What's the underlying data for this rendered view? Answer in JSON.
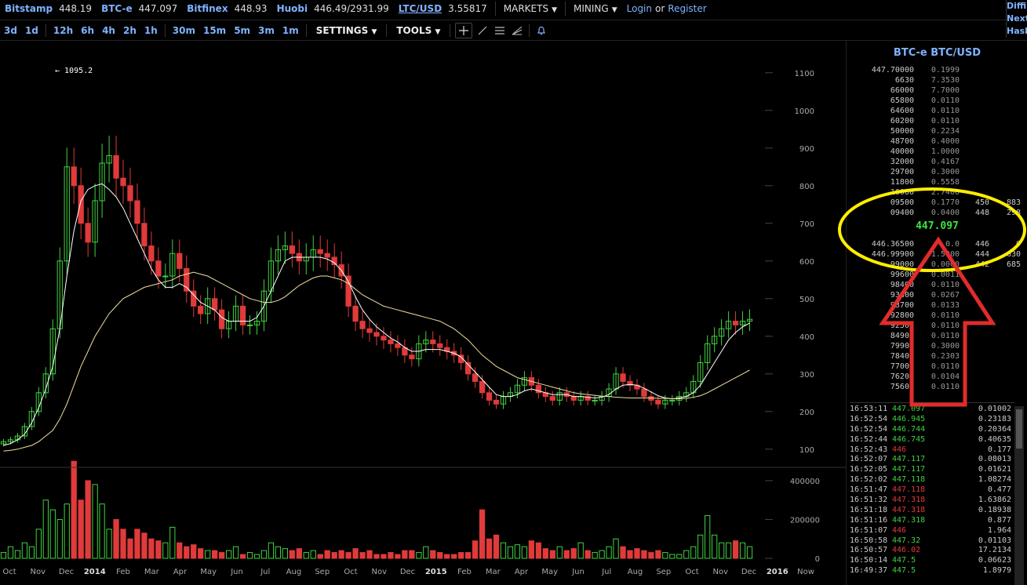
{
  "topbar": {
    "markets": [
      {
        "name": "Bitstamp",
        "price": "448.19"
      },
      {
        "name": "BTC-e",
        "price": "447.097"
      },
      {
        "name": "Bitfinex",
        "price": "448.93"
      },
      {
        "name": "Huobi",
        "price": "446.49/2931.99"
      }
    ],
    "ltc": {
      "name": "LTC/USD",
      "price": "3.55817"
    },
    "menus": [
      {
        "label": "MARKETS"
      },
      {
        "label": "MINING"
      }
    ],
    "login": "Login",
    "or": "or",
    "register": "Register",
    "corner": [
      "Diffi",
      "Next",
      "Hash"
    ]
  },
  "toolbar": {
    "periods": [
      "3d",
      "1d",
      "12h",
      "6h",
      "4h",
      "2h",
      "1h",
      "30m",
      "15m",
      "5m",
      "3m",
      "1m"
    ],
    "settings": "SETTINGS",
    "tools": "TOOLS",
    "icons": [
      "crosshair-icon",
      "line-draw-icon",
      "horizontal-lines-icon",
      "fan-icon",
      "bell-icon"
    ]
  },
  "chart_data": {
    "type": "candlestick",
    "title": "",
    "y_ticks": [
      "1100",
      "1000",
      "900",
      "800",
      "700",
      "600",
      "500",
      "400",
      "300",
      "200",
      "100"
    ],
    "ylim": [
      60,
      1110
    ],
    "volume_ticks": [
      "400000",
      "200000",
      "0"
    ],
    "x_ticks": [
      "Oct",
      "Nov",
      "Dec",
      "2014",
      "Feb",
      "Mar",
      "Apr",
      "May",
      "Jun",
      "Jul",
      "Aug",
      "Sep",
      "Oct",
      "Nov",
      "Dec",
      "2015",
      "Feb",
      "Mar",
      "Apr",
      "May",
      "Jun",
      "Jul",
      "Aug",
      "Sep",
      "Oct",
      "Nov",
      "Dec",
      "2016",
      "Now"
    ],
    "annotation": "← 1095.2",
    "close_series": [
      120,
      125,
      135,
      160,
      200,
      250,
      300,
      420,
      600,
      850,
      800,
      700,
      650,
      760,
      860,
      880,
      820,
      800,
      760,
      700,
      640,
      600,
      560,
      560,
      620,
      580,
      520,
      480,
      460,
      500,
      470,
      420,
      440,
      480,
      430,
      430,
      440,
      520,
      600,
      630,
      640,
      620,
      600,
      610,
      630,
      620,
      610,
      590,
      560,
      480,
      440,
      420,
      410,
      400,
      390,
      380,
      370,
      350,
      340,
      380,
      390,
      380,
      370,
      360,
      350,
      330,
      300,
      280,
      250,
      230,
      220,
      240,
      250,
      270,
      290,
      270,
      250,
      240,
      230,
      250,
      240,
      230,
      240,
      230,
      230,
      240,
      260,
      300,
      280,
      270,
      260,
      240,
      230,
      220,
      230,
      230,
      240,
      250,
      280,
      330,
      380,
      400,
      420,
      440,
      430,
      440,
      445
    ],
    "ma_fast": [
      110,
      115,
      125,
      140,
      170,
      210,
      260,
      320,
      420,
      560,
      680,
      760,
      790,
      800,
      805,
      790,
      770,
      740,
      700,
      660,
      620,
      580,
      550,
      530,
      530,
      540,
      530,
      510,
      490,
      480,
      470,
      450,
      440,
      440,
      440,
      440,
      450,
      480,
      520,
      560,
      600,
      610,
      610,
      610,
      610,
      610,
      605,
      595,
      575,
      545,
      505,
      470,
      445,
      425,
      410,
      395,
      385,
      370,
      360,
      360,
      365,
      365,
      365,
      360,
      355,
      345,
      325,
      305,
      285,
      265,
      245,
      240,
      240,
      245,
      255,
      260,
      255,
      250,
      245,
      245,
      245,
      240,
      240,
      238,
      236,
      238,
      245,
      260,
      270,
      272,
      270,
      262,
      252,
      242,
      236,
      234,
      236,
      240,
      250,
      270,
      300,
      330,
      360,
      390,
      410,
      425,
      435
    ],
    "ma_slow": [
      95,
      97,
      100,
      105,
      110,
      120,
      135,
      150,
      180,
      220,
      270,
      320,
      360,
      400,
      430,
      460,
      480,
      500,
      510,
      520,
      530,
      535,
      540,
      545,
      550,
      560,
      565,
      570,
      565,
      560,
      550,
      540,
      530,
      520,
      510,
      500,
      495,
      490,
      490,
      495,
      505,
      520,
      535,
      545,
      555,
      560,
      560,
      555,
      550,
      540,
      525,
      510,
      500,
      490,
      480,
      475,
      470,
      465,
      460,
      455,
      450,
      445,
      440,
      430,
      420,
      405,
      390,
      370,
      350,
      335,
      320,
      310,
      300,
      290,
      285,
      280,
      275,
      270,
      265,
      260,
      255,
      250,
      247,
      245,
      243,
      241,
      240,
      238,
      237,
      236,
      236,
      236,
      236,
      235,
      235,
      234,
      234,
      235,
      238,
      242,
      250,
      260,
      270,
      280,
      290,
      300,
      310
    ],
    "volume": [
      30000,
      60000,
      40000,
      80000,
      60000,
      150000,
      300000,
      250000,
      200000,
      280000,
      500000,
      300000,
      400000,
      380000,
      280000,
      150000,
      200000,
      150000,
      100000,
      150000,
      130000,
      100000,
      90000,
      80000,
      160000,
      80000,
      60000,
      70000,
      50000,
      40000,
      40000,
      30000,
      40000,
      60000,
      20000,
      30000,
      20000,
      40000,
      80000,
      60000,
      50000,
      40000,
      50000,
      30000,
      40000,
      20000,
      40000,
      30000,
      40000,
      30000,
      50000,
      30000,
      40000,
      20000,
      20000,
      30000,
      20000,
      40000,
      40000,
      30000,
      60000,
      40000,
      30000,
      20000,
      20000,
      30000,
      30000,
      90000,
      250000,
      100000,
      120000,
      80000,
      60000,
      70000,
      60000,
      90000,
      80000,
      50000,
      40000,
      60000,
      40000,
      50000,
      80000,
      40000,
      30000,
      40000,
      60000,
      100000,
      60000,
      40000,
      50000,
      40000,
      30000,
      40000,
      30000,
      20000,
      20000,
      40000,
      60000,
      120000,
      220000,
      120000,
      80000,
      80000,
      90000,
      80000,
      60000
    ]
  },
  "sidebar": {
    "title": "BTC-e BTC/USD",
    "asks": [
      {
        "p": "447.70000",
        "a": "0.1999",
        "s": "",
        "c": ""
      },
      {
        "p": "6630",
        "a": "7.3530",
        "s": "",
        "c": ""
      },
      {
        "p": "66000",
        "a": "7.7000",
        "s": "",
        "c": ""
      },
      {
        "p": "65800",
        "a": "0.0110",
        "s": "",
        "c": ""
      },
      {
        "p": "64600",
        "a": "0.0110",
        "s": "",
        "c": ""
      },
      {
        "p": "60200",
        "a": "0.0110",
        "s": "",
        "c": ""
      },
      {
        "p": "50000",
        "a": "0.2234",
        "s": "",
        "c": ""
      },
      {
        "p": "48700",
        "a": "0.4000",
        "s": "",
        "c": ""
      },
      {
        "p": "40000",
        "a": "1.0000",
        "s": "",
        "c": ""
      },
      {
        "p": "32000",
        "a": "0.4167",
        "s": "",
        "c": ""
      },
      {
        "p": "29700",
        "a": "0.3000",
        "s": "",
        "c": ""
      },
      {
        "p": "11800",
        "a": "0.5558",
        "s": "",
        "c": ""
      },
      {
        "p": "10000",
        "a": "2.7400",
        "s": "",
        "c": ""
      },
      {
        "p": "09500",
        "a": "0.1770",
        "s": "450",
        "c": "883"
      },
      {
        "p": "09400",
        "a": "0.0400",
        "s": "448",
        "c": "298"
      }
    ],
    "last_price": "447.097",
    "bids": [
      {
        "p": "446.36500",
        "a": "0.0",
        "s": "446",
        "c": "0"
      },
      {
        "p": "446.99900",
        "a": "1.5000",
        "s": "444",
        "c": "630"
      },
      {
        "p": "99000",
        "a": "0.0000",
        "s": "442",
        "c": "685"
      },
      {
        "p": "99600",
        "a": "0.0011",
        "s": "",
        "c": ""
      },
      {
        "p": "98400",
        "a": "0.0110",
        "s": "",
        "c": ""
      },
      {
        "p": "93800",
        "a": "0.0267",
        "s": "",
        "c": ""
      },
      {
        "p": "93700",
        "a": "0.0133",
        "s": "",
        "c": ""
      },
      {
        "p": "92800",
        "a": "0.0110",
        "s": "",
        "c": ""
      },
      {
        "p": "92500",
        "a": "0.0110",
        "s": "",
        "c": ""
      },
      {
        "p": "84900",
        "a": "0.0110",
        "s": "",
        "c": ""
      },
      {
        "p": "79900",
        "a": "0.3000",
        "s": "",
        "c": ""
      },
      {
        "p": "78400",
        "a": "0.2303",
        "s": "",
        "c": ""
      },
      {
        "p": "77000",
        "a": "0.0110",
        "s": "",
        "c": ""
      },
      {
        "p": "76200",
        "a": "0.0104",
        "s": "",
        "c": ""
      },
      {
        "p": "75600",
        "a": "0.0110",
        "s": "",
        "c": ""
      }
    ],
    "trades": [
      {
        "t": "16:53:11",
        "p": "447.097",
        "a": "0.01002",
        "dir": "up"
      },
      {
        "t": "16:52:54",
        "p": "446.945",
        "a": "0.23183",
        "dir": "up"
      },
      {
        "t": "16:52:54",
        "p": "446.744",
        "a": "0.20364",
        "dir": "up"
      },
      {
        "t": "16:52:44",
        "p": "446.745",
        "a": "0.40635",
        "dir": "up"
      },
      {
        "t": "16:52:43",
        "p": "446",
        "a": "0.177",
        "dir": "down"
      },
      {
        "t": "16:52:07",
        "p": "447.117",
        "a": "0.08013",
        "dir": "up"
      },
      {
        "t": "16:52:05",
        "p": "447.117",
        "a": "0.01621",
        "dir": "up"
      },
      {
        "t": "16:52:02",
        "p": "447.118",
        "a": "1.08274",
        "dir": "up"
      },
      {
        "t": "16:51:47",
        "p": "447.118",
        "a": "0.477",
        "dir": "down"
      },
      {
        "t": "16:51:32",
        "p": "447.318",
        "a": "1.63862",
        "dir": "down"
      },
      {
        "t": "16:51:18",
        "p": "447.318",
        "a": "0.18938",
        "dir": "down"
      },
      {
        "t": "16:51:16",
        "p": "447.318",
        "a": "0.877",
        "dir": "up"
      },
      {
        "t": "16:51:07",
        "p": "446",
        "a": "1.964",
        "dir": "down"
      },
      {
        "t": "16:50:58",
        "p": "447.32",
        "a": "0.01103",
        "dir": "up"
      },
      {
        "t": "16:50:57",
        "p": "446.02",
        "a": "17.2134",
        "dir": "down"
      },
      {
        "t": "16:50:14",
        "p": "447.5",
        "a": "0.06623",
        "dir": "up"
      },
      {
        "t": "16:49:37",
        "p": "447.5",
        "a": "1.8979",
        "dir": "up"
      }
    ]
  },
  "colors": {
    "accent": "#7fb3ff",
    "up": "#3fd33f",
    "down": "#e03a3a",
    "ma_fast": "#ffffff",
    "ma_slow": "#f0e0a0",
    "annotation_ellipse": "#ffee00",
    "annotation_arrow": "#e32b2b"
  }
}
